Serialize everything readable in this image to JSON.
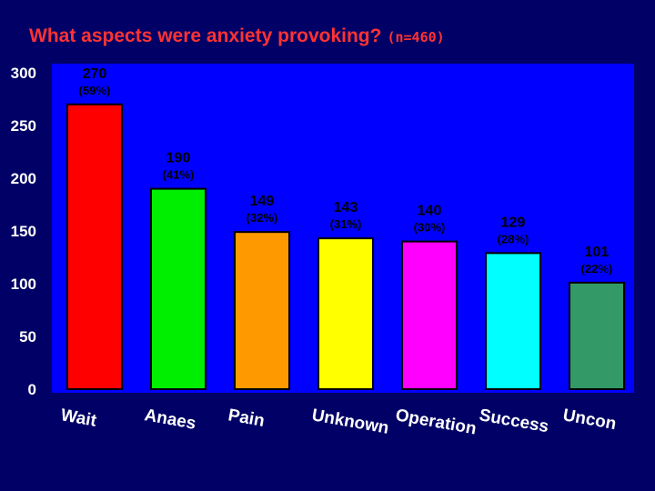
{
  "chart_data": {
    "type": "bar",
    "title": "What aspects were anxiety provoking?",
    "subtitle": "(n=460)",
    "categories": [
      "Wait",
      "Anaes",
      "Pain",
      "Unknown",
      "Operation",
      "Success",
      "Uncon"
    ],
    "values": [
      270,
      190,
      149,
      143,
      140,
      129,
      101
    ],
    "percent_labels": [
      "(59%)",
      "(41%)",
      "(32%)",
      "(31%)",
      "(30%)",
      "(28%)",
      "(22%)"
    ],
    "bar_colors": [
      "#ff0000",
      "#00ee00",
      "#ff9900",
      "#ffff00",
      "#ff00ff",
      "#00ffff",
      "#339966"
    ],
    "ylim": [
      0,
      300
    ],
    "yticks": [
      0,
      50,
      100,
      150,
      200,
      250,
      300
    ],
    "xlabel": "",
    "ylabel": "",
    "plot_background": "#0000ff",
    "page_background": "#000066"
  }
}
